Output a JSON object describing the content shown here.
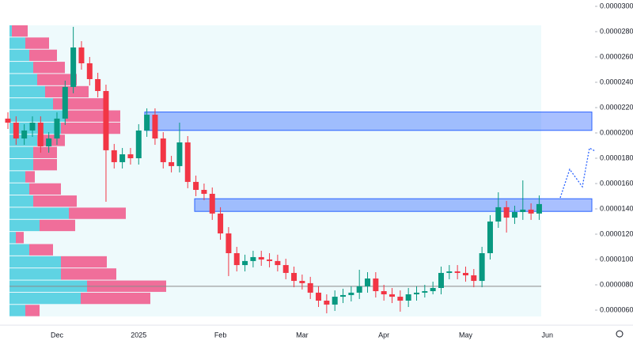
{
  "chart_data": {
    "type": "candlestick",
    "categories": [
      null,
      null,
      null,
      null,
      null,
      null,
      "Dec",
      null,
      null,
      null,
      null,
      null,
      null,
      null,
      null,
      null,
      "2025",
      null,
      null,
      null,
      null,
      null,
      null,
      null,
      null,
      null,
      "Feb",
      null,
      null,
      null,
      null,
      null,
      null,
      null,
      null,
      null,
      "Mar",
      null,
      null,
      null,
      null,
      null,
      null,
      null,
      null,
      null,
      "Apr",
      null,
      null,
      null,
      null,
      null,
      null,
      null,
      null,
      null,
      "May",
      null,
      null,
      null,
      null,
      null,
      null,
      null,
      null,
      null,
      "Jun"
    ],
    "open": [
      2.113e-05,
      2.081e-05,
      1.956e-05,
      2.019e-05,
      2.081e-05,
      1.894e-05,
      1.956e-05,
      2.113e-05,
      2.363e-05,
      2.675e-05,
      2.55e-05,
      2.425e-05,
      2.331e-05,
      1.863e-05,
      1.769e-05,
      1.831e-05,
      1.8e-05,
      2.019e-05,
      2.144e-05,
      1.956e-05,
      1.769e-05,
      1.738e-05,
      1.925e-05,
      1.613e-05,
      1.55e-05,
      1.519e-05,
      1.363e-05,
      1.206e-05,
      1.05e-05,
      9.56e-06,
      9.88e-06,
      1.019e-05,
      1e-05,
      9.88e-06,
      9.56e-06,
      8.94e-06,
      8.31e-06,
      8.13e-06,
      7.38e-06,
      6.75e-06,
      6.44e-06,
      7.06e-06,
      7.19e-06,
      7.38e-06,
      7.88e-06,
      8.5e-06,
      7.5e-06,
      7.25e-06,
      7.06e-06,
      6.75e-06,
      7.25e-06,
      7.38e-06,
      7.5e-06,
      7.75e-06,
      8.94e-06,
      9.06e-06,
      8.94e-06,
      8.75e-06,
      8.31e-06,
      1.05e-05,
      1.3e-05,
      1.413e-05,
      1.331e-05,
      1.375e-05,
      1.394e-05,
      1.363e-05,
      null
    ],
    "high": [
      2.163e-05,
      2.131e-05,
      2.069e-05,
      2.131e-05,
      2.131e-05,
      2.006e-05,
      2.163e-05,
      2.413e-05,
      2.838e-05,
      2.725e-05,
      2.6e-05,
      2.475e-05,
      2.381e-05,
      1.913e-05,
      1.881e-05,
      1.881e-05,
      2.069e-05,
      2.194e-05,
      2.194e-05,
      2.006e-05,
      1.819e-05,
      2.081e-05,
      1.975e-05,
      1.663e-05,
      1.6e-05,
      1.569e-05,
      1.413e-05,
      1.256e-05,
      1.1e-05,
      1.038e-05,
      1.069e-05,
      1.069e-05,
      1.05e-05,
      1.038e-05,
      1.006e-05,
      9.44e-06,
      8.81e-06,
      8.63e-06,
      7.88e-06,
      7.25e-06,
      7.56e-06,
      7.69e-06,
      7.88e-06,
      9.19e-06,
      9e-06,
      9e-06,
      8e-06,
      7.75e-06,
      7.56e-06,
      7.75e-06,
      7.88e-06,
      8e-06,
      8.25e-06,
      9.44e-06,
      9.56e-06,
      9.56e-06,
      9.44e-06,
      9.25e-06,
      1.1e-05,
      1.35e-05,
      1.531e-05,
      1.463e-05,
      1.425e-05,
      1.625e-05,
      1.444e-05,
      1.506e-05,
      null
    ],
    "low": [
      2.031e-05,
      1.906e-05,
      1.906e-05,
      1.969e-05,
      1.844e-05,
      1.844e-05,
      1.906e-05,
      2.063e-05,
      2.313e-05,
      2.5e-05,
      2.375e-05,
      2.281e-05,
      1.456e-05,
      1.719e-05,
      1.719e-05,
      1.75e-05,
      1.75e-05,
      1.969e-05,
      1.906e-05,
      1.719e-05,
      1.688e-05,
      1.688e-05,
      1.563e-05,
      1.5e-05,
      1.469e-05,
      1.313e-05,
      1.156e-05,
      8.69e-06,
      9.06e-06,
      9.06e-06,
      9.38e-06,
      9.5e-06,
      9.38e-06,
      9.06e-06,
      8.44e-06,
      7.81e-06,
      7.63e-06,
      6.88e-06,
      6.25e-06,
      5.75e-06,
      5.94e-06,
      6.56e-06,
      6.69e-06,
      6.88e-06,
      7.38e-06,
      7e-06,
      6.75e-06,
      6.56e-06,
      5.88e-06,
      6.25e-06,
      6.75e-06,
      7e-06,
      7.25e-06,
      7.25e-06,
      8.44e-06,
      8.44e-06,
      8.25e-06,
      7.81e-06,
      7.81e-06,
      1e-05,
      1.25e-05,
      1.213e-05,
      1.281e-05,
      1.313e-05,
      1.313e-05,
      1.313e-05,
      null
    ],
    "close": [
      2.081e-05,
      1.956e-05,
      2.019e-05,
      2.081e-05,
      1.894e-05,
      1.956e-05,
      2.113e-05,
      2.363e-05,
      2.675e-05,
      2.55e-05,
      2.425e-05,
      2.331e-05,
      1.863e-05,
      1.769e-05,
      1.831e-05,
      1.8e-05,
      2.019e-05,
      2.144e-05,
      1.956e-05,
      1.769e-05,
      1.738e-05,
      1.925e-05,
      1.613e-05,
      1.55e-05,
      1.519e-05,
      1.363e-05,
      1.206e-05,
      1.05e-05,
      9.56e-06,
      9.88e-06,
      1.019e-05,
      1e-05,
      9.88e-06,
      9.56e-06,
      8.94e-06,
      8.31e-06,
      8.13e-06,
      7.38e-06,
      6.75e-06,
      6.44e-06,
      7.06e-06,
      7.19e-06,
      7.38e-06,
      7.88e-06,
      8.5e-06,
      7.5e-06,
      7.25e-06,
      7.06e-06,
      6.75e-06,
      7.25e-06,
      7.38e-06,
      7.5e-06,
      7.75e-06,
      8.94e-06,
      9.06e-06,
      8.94e-06,
      8.75e-06,
      8.31e-06,
      1.05e-05,
      1.3e-05,
      1.413e-05,
      1.331e-05,
      1.375e-05,
      1.394e-05,
      1.363e-05,
      1.438e-05,
      null
    ],
    "up_color": "#089981",
    "down_color": "#f23645",
    "ylim": [
      5.1e-06,
      3.05e-05
    ],
    "yticks": [
      {
        "value": 6e-06,
        "label": "0.00000600"
      },
      {
        "value": 8e-06,
        "label": "0.00000800"
      },
      {
        "value": 1e-05,
        "label": "0.00001000"
      },
      {
        "value": 1.2e-05,
        "label": "0.00001200"
      },
      {
        "value": 1.4e-05,
        "label": "0.00001400"
      },
      {
        "value": 1.6e-05,
        "label": "0.00001600"
      },
      {
        "value": 1.8e-05,
        "label": "0.00001800"
      },
      {
        "value": 2e-05,
        "label": "0.00002000"
      },
      {
        "value": 2.2e-05,
        "label": "0.00002200"
      },
      {
        "value": 2.4e-05,
        "label": "0.00002400"
      },
      {
        "value": 2.6e-05,
        "label": "0.00002600"
      },
      {
        "value": 2.8e-05,
        "label": "0.00002800"
      },
      {
        "value": 3e-05,
        "label": "0.00003000"
      }
    ],
    "zones": [
      {
        "from": 2.02e-05,
        "to": 2.165e-05,
        "color": "#2962ff"
      },
      {
        "from": 1.38e-05,
        "to": 1.48e-05,
        "color": "#2962ff"
      }
    ],
    "level_line": 7.88e-06,
    "volume_profile": {
      "price_bins": [
        2.85e-05,
        2.754e-05,
        2.658e-05,
        2.562e-05,
        2.466e-05,
        2.37e-05,
        2.274e-05,
        2.178e-05,
        2.082e-05,
        1.986e-05,
        1.89e-05,
        1.794e-05,
        1.698e-05,
        1.602e-05,
        1.506e-05,
        1.41e-05,
        1.314e-05,
        1.218e-05,
        1.122e-05,
        1.026e-05,
        9.3e-06,
        8.34e-06,
        7.38e-06,
        6.42e-06,
        5.46e-06
      ],
      "buy": [
        3,
        20,
        25,
        30,
        35,
        45,
        55,
        70,
        65,
        35,
        30,
        30,
        20,
        25,
        30,
        75,
        38,
        8,
        25,
        65,
        65,
        98,
        90,
        20
      ],
      "sell": [
        20,
        30,
        35,
        40,
        50,
        55,
        70,
        70,
        75,
        35,
        30,
        30,
        12,
        40,
        55,
        72,
        45,
        10,
        30,
        58,
        70,
        100,
        88,
        18
      ],
      "buy_color": "#5fd3e3",
      "sell_color": "#f06e9a"
    }
  }
}
